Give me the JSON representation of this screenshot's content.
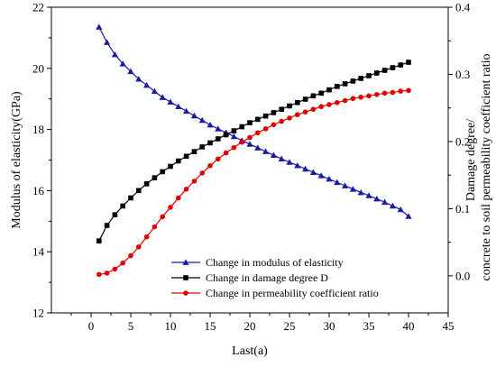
{
  "chart_data": {
    "type": "line",
    "xlabel": "Last(a)",
    "ylabel_left": "Modulus of elasticity(GPa)",
    "ylabel_right_line1": "Damage degree/",
    "ylabel_right_line2": "concrete to soil permeability coefficient ratio",
    "xlim": [
      -5,
      45
    ],
    "ylim_left": [
      12,
      22
    ],
    "ylim_right": [
      -0.0552,
      0.4
    ],
    "x_ticks": [
      0,
      5,
      10,
      15,
      20,
      25,
      30,
      35,
      40,
      45
    ],
    "x_tick_labels": [
      "0",
      "5",
      "10",
      "15",
      "20",
      "25",
      "30",
      "35",
      "40",
      "45"
    ],
    "y_left_ticks": [
      12,
      14,
      16,
      18,
      20,
      22
    ],
    "y_left_tick_labels": [
      "12",
      "14",
      "16",
      "18",
      "20",
      "22"
    ],
    "y_right_ticks": [
      0.0,
      0.1,
      0.2,
      0.3,
      0.4
    ],
    "y_right_tick_labels": [
      "0.0",
      "0.1",
      "0.2",
      "0.3",
      "0.4"
    ],
    "grid": false,
    "legend_position": "bottom-right",
    "x": [
      1,
      2,
      3,
      4,
      5,
      6,
      7,
      8,
      9,
      10,
      11,
      12,
      13,
      14,
      15,
      16,
      17,
      18,
      19,
      20,
      21,
      22,
      23,
      24,
      25,
      26,
      27,
      28,
      29,
      30,
      31,
      32,
      33,
      34,
      35,
      36,
      37,
      38,
      39,
      40
    ],
    "series": [
      {
        "name": "Change in modulus of elasticity",
        "axis": "left",
        "color": "#1a1aa6",
        "marker": "triangle",
        "values": [
          21.35,
          20.85,
          20.45,
          20.15,
          19.9,
          19.65,
          19.45,
          19.25,
          19.05,
          18.9,
          18.75,
          18.6,
          18.45,
          18.3,
          18.15,
          18.02,
          17.9,
          17.77,
          17.64,
          17.52,
          17.4,
          17.28,
          17.16,
          17.04,
          16.93,
          16.82,
          16.71,
          16.6,
          16.49,
          16.38,
          16.27,
          16.16,
          16.05,
          15.94,
          15.84,
          15.73,
          15.62,
          15.5,
          15.38,
          15.16
        ]
      },
      {
        "name": "Change in damage degree D",
        "axis": "right",
        "color": "#000000",
        "marker": "square",
        "values": [
          0.052,
          0.075,
          0.091,
          0.104,
          0.116,
          0.127,
          0.137,
          0.146,
          0.155,
          0.163,
          0.171,
          0.178,
          0.185,
          0.192,
          0.198,
          0.204,
          0.21,
          0.216,
          0.222,
          0.228,
          0.233,
          0.238,
          0.243,
          0.248,
          0.253,
          0.258,
          0.263,
          0.268,
          0.272,
          0.277,
          0.282,
          0.286,
          0.29,
          0.294,
          0.298,
          0.302,
          0.306,
          0.31,
          0.314,
          0.318
        ]
      },
      {
        "name": "Change in permeability coefficient ratio",
        "axis": "right",
        "color": "#e00000",
        "marker": "circle",
        "values": [
          0.002,
          0.004,
          0.01,
          0.019,
          0.03,
          0.043,
          0.058,
          0.073,
          0.088,
          0.102,
          0.116,
          0.129,
          0.141,
          0.153,
          0.164,
          0.174,
          0.183,
          0.191,
          0.199,
          0.206,
          0.213,
          0.219,
          0.225,
          0.23,
          0.235,
          0.24,
          0.244,
          0.248,
          0.252,
          0.255,
          0.258,
          0.261,
          0.264,
          0.266,
          0.268,
          0.27,
          0.272,
          0.273,
          0.275,
          0.276
        ]
      }
    ]
  }
}
